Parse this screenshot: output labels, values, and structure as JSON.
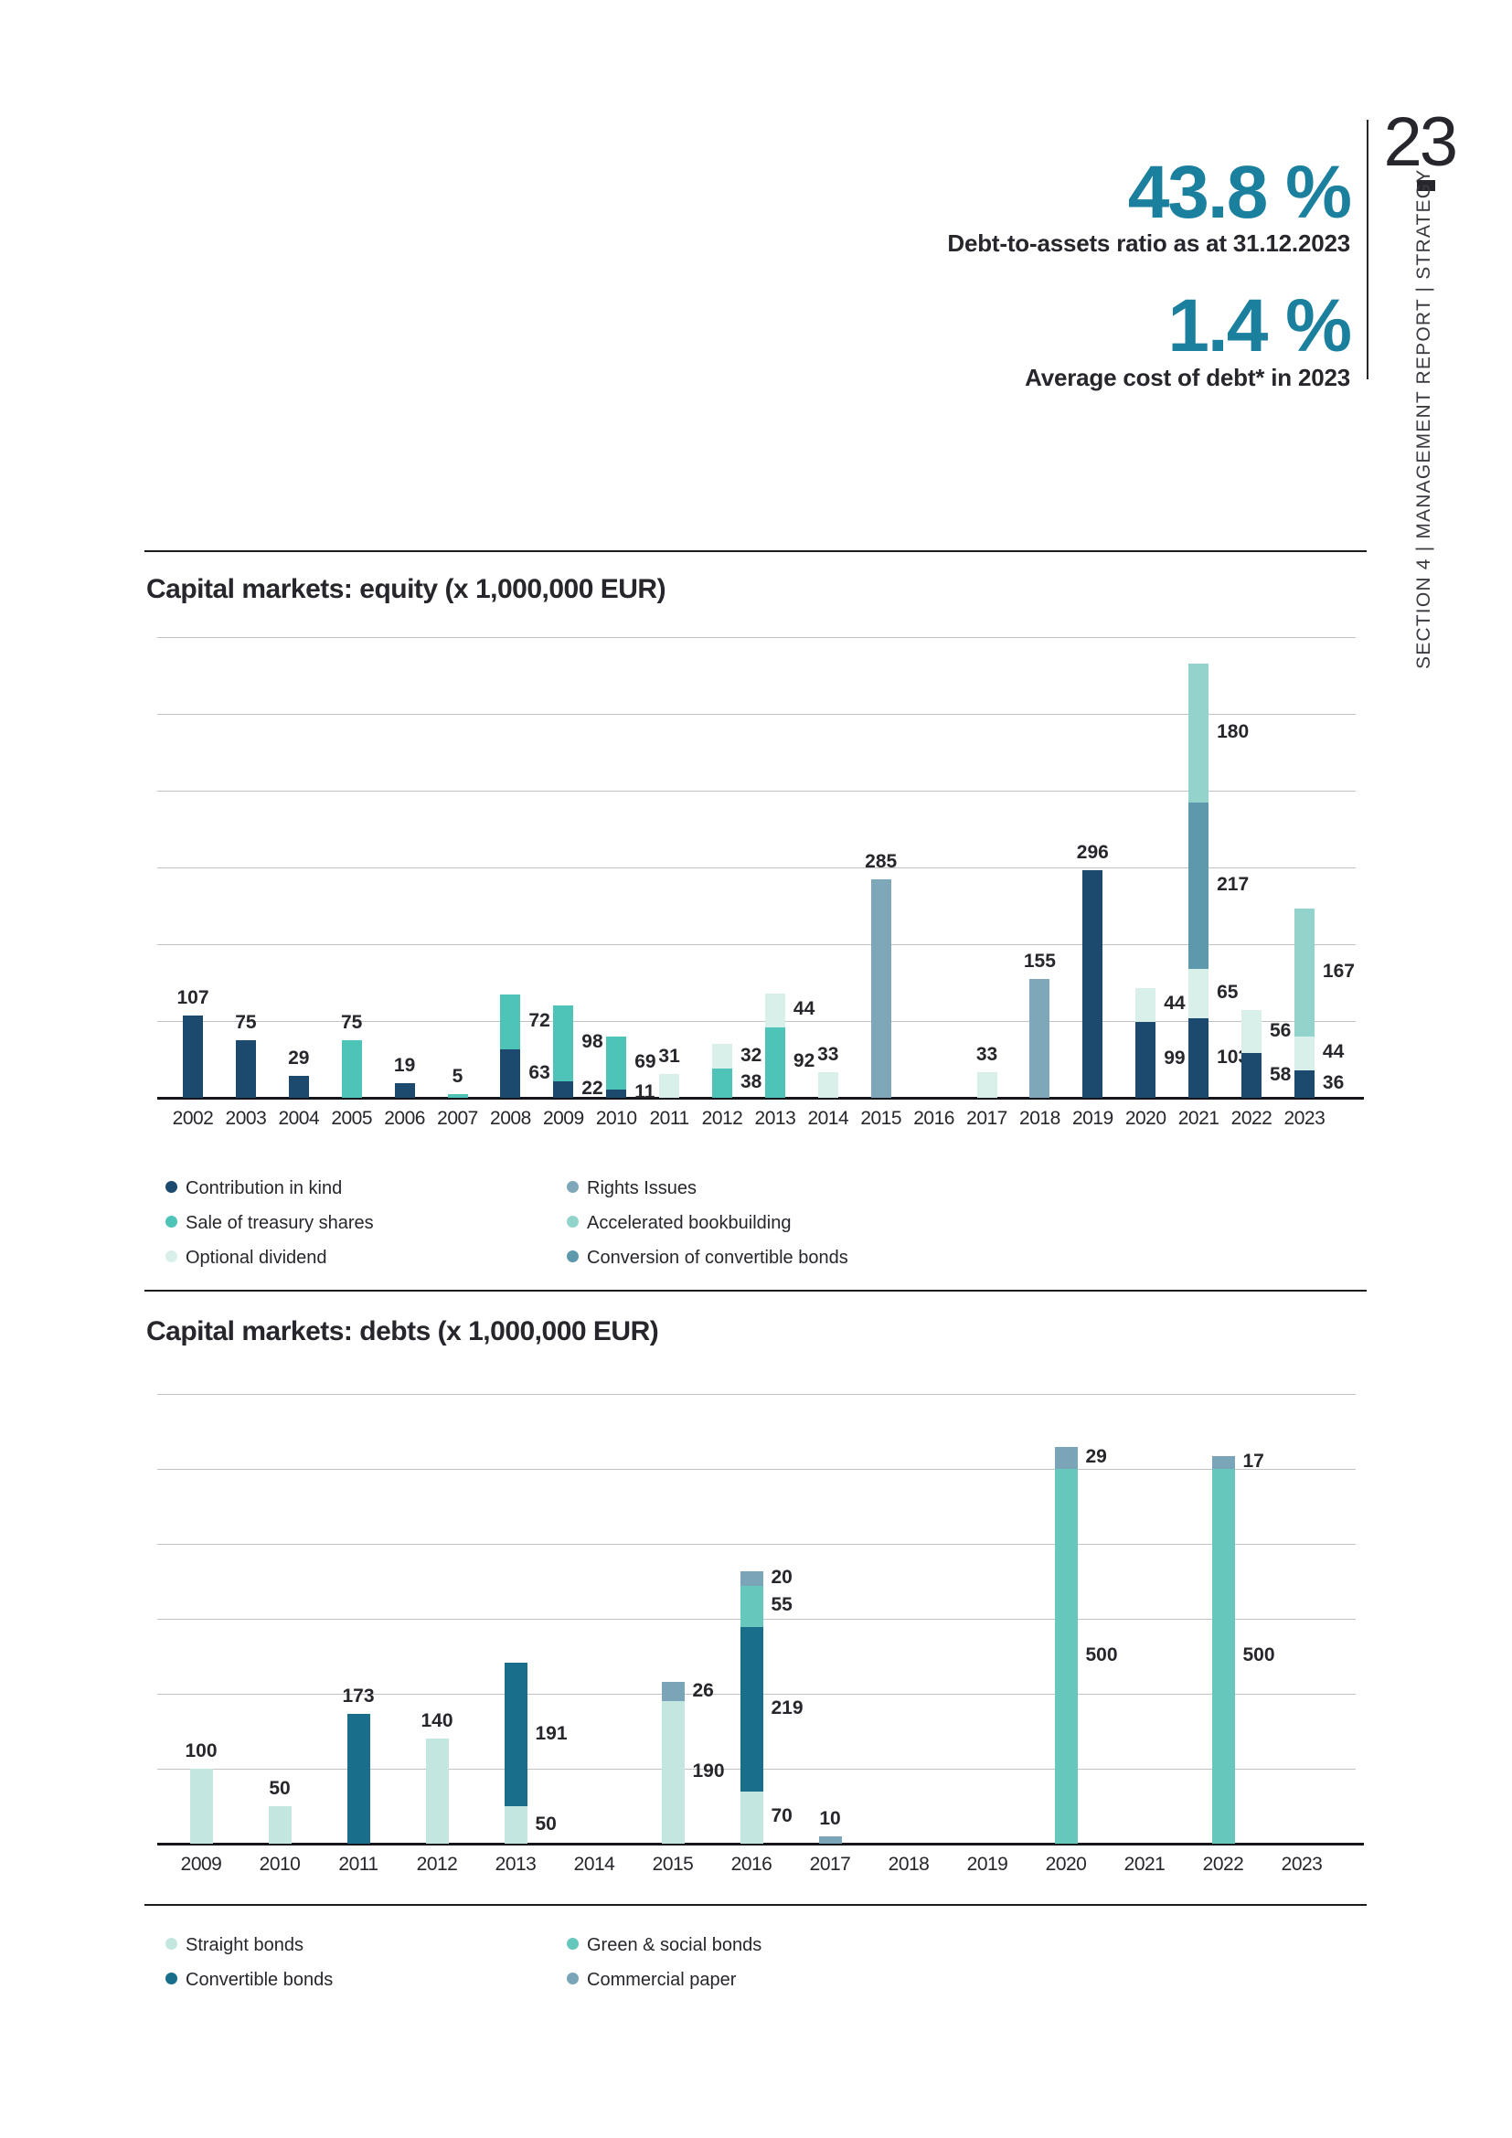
{
  "page": {
    "number": "23",
    "sidebar": "SECTION 4  |  MANAGEMENT REPORT  |  STRATEGY"
  },
  "stats": [
    {
      "value": "43.8 %",
      "label": "Debt-to-assets ratio as at 31.12.2023"
    },
    {
      "value": "1.4 %",
      "label": "Average cost of debt* in 2023"
    }
  ],
  "colors": {
    "accent": "#1B7F9E",
    "ink": "#26262C",
    "grid": "#C2C2C2",
    "axis": "#15151A",
    "navy": "#1C4A6E",
    "teal_sale": "#4EC3B8",
    "pale_mint": "#D9EFEA",
    "steel_rights": "#7FA7BA",
    "light_teal_accelerated": "#92D4CB",
    "blue_teal_conversion": "#5C99AD",
    "pale_straight": "#C3E7E0",
    "petrol_convertible": "#196F8B",
    "green_social": "#66C7BD",
    "steel_commercial": "#7AA4B8"
  },
  "chart_data": [
    {
      "type": "bar",
      "stacked": true,
      "title": "Capital markets: equity (x 1,000,000 EUR)",
      "ylim": [
        0,
        600
      ],
      "grid_step": 100,
      "grid": true,
      "legend_position": "bottom",
      "categories": [
        "2002",
        "2003",
        "2004",
        "2005",
        "2006",
        "2007",
        "2008",
        "2009",
        "2010",
        "2011",
        "2012",
        "2013",
        "2014",
        "2015",
        "2016",
        "2017",
        "2018",
        "2019",
        "2020",
        "2021",
        "2022",
        "2023"
      ],
      "series": [
        {
          "name": "Contribution in kind",
          "color": "#1C4A6E",
          "values": [
            107,
            75,
            29,
            0,
            19,
            0,
            63,
            22,
            11,
            0,
            0,
            0,
            0,
            0,
            0,
            0,
            0,
            296,
            99,
            103,
            58,
            36
          ]
        },
        {
          "name": "Sale of treasury shares",
          "color": "#4EC3B8",
          "values": [
            0,
            0,
            0,
            75,
            0,
            5,
            72,
            98,
            69,
            0,
            38,
            92,
            0,
            0,
            0,
            0,
            0,
            0,
            0,
            0,
            0,
            0
          ]
        },
        {
          "name": "Optional dividend",
          "color": "#D9EFEA",
          "values": [
            0,
            0,
            0,
            0,
            0,
            0,
            0,
            0,
            0,
            31,
            32,
            44,
            33,
            0,
            0,
            33,
            0,
            0,
            44,
            65,
            56,
            44
          ]
        },
        {
          "name": "Rights Issues",
          "color": "#7FA7BA",
          "values": [
            0,
            0,
            0,
            0,
            0,
            0,
            0,
            0,
            0,
            0,
            0,
            0,
            0,
            285,
            0,
            0,
            155,
            0,
            0,
            0,
            0,
            0
          ]
        },
        {
          "name": "Conversion of convertible bonds",
          "color": "#5C99AD",
          "values": [
            0,
            0,
            0,
            0,
            0,
            0,
            0,
            0,
            0,
            0,
            0,
            0,
            0,
            0,
            0,
            0,
            0,
            0,
            0,
            217,
            0,
            0
          ]
        },
        {
          "name": "Accelerated bookbuilding",
          "color": "#92D4CB",
          "values": [
            0,
            0,
            0,
            0,
            0,
            0,
            0,
            0,
            0,
            0,
            0,
            0,
            0,
            0,
            0,
            0,
            0,
            0,
            0,
            180,
            0,
            167
          ]
        }
      ],
      "legend": [
        {
          "label": "Contribution in kind",
          "color": "#1C4A6E"
        },
        {
          "label": "Sale of treasury shares",
          "color": "#4EC3B8"
        },
        {
          "label": "Optional dividend",
          "color": "#D9EFEA"
        },
        {
          "label": "Rights Issues",
          "color": "#7FA7BA"
        },
        {
          "label": "Accelerated bookbuilding",
          "color": "#92D4CB"
        },
        {
          "label": "Conversion of convertible bonds",
          "color": "#5C99AD"
        }
      ]
    },
    {
      "type": "bar",
      "stacked": true,
      "title": "Capital markets: debts (x 1,000,000 EUR)",
      "ylim": [
        0,
        600
      ],
      "grid_step": 100,
      "grid": true,
      "legend_position": "bottom",
      "categories": [
        "2009",
        "2010",
        "2011",
        "2012",
        "2013",
        "2014",
        "2015",
        "2016",
        "2017",
        "2018",
        "2019",
        "2020",
        "2021",
        "2022",
        "2023"
      ],
      "series": [
        {
          "name": "Straight bonds",
          "color": "#C3E7E0",
          "values": [
            100,
            50,
            0,
            140,
            50,
            0,
            190,
            70,
            0,
            0,
            0,
            0,
            0,
            0,
            0
          ]
        },
        {
          "name": "Convertible bonds",
          "color": "#196F8B",
          "values": [
            0,
            0,
            173,
            0,
            191,
            0,
            0,
            219,
            0,
            0,
            0,
            0,
            0,
            0,
            0
          ]
        },
        {
          "name": "Green & social bonds",
          "color": "#66C7BD",
          "values": [
            0,
            0,
            0,
            0,
            0,
            0,
            0,
            55,
            0,
            0,
            0,
            500,
            0,
            500,
            0
          ]
        },
        {
          "name": "Commercial paper",
          "color": "#7AA4B8",
          "values": [
            0,
            0,
            0,
            0,
            0,
            0,
            26,
            20,
            10,
            0,
            0,
            29,
            0,
            17,
            0
          ]
        }
      ],
      "legend": [
        {
          "label": "Straight bonds",
          "color": "#C3E7E0"
        },
        {
          "label": "Convertible bonds",
          "color": "#196F8B"
        },
        {
          "label": "Green & social bonds",
          "color": "#66C7BD"
        },
        {
          "label": "Commercial paper",
          "color": "#7AA4B8"
        }
      ]
    }
  ]
}
